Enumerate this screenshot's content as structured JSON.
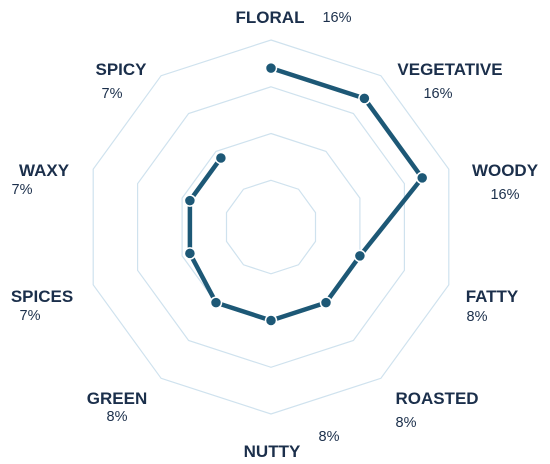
{
  "chart_data": {
    "type": "radar",
    "categories": [
      "FLORAL",
      "VEGETATIVE",
      "WOODY",
      "FATTY",
      "ROASTED",
      "NUTTY",
      "GREEN",
      "SPICES",
      "WAXY",
      "SPICY"
    ],
    "value_labels": [
      "16%",
      "16%",
      "16%",
      "8%",
      "8%",
      "8%",
      "8%",
      "7%",
      "7%",
      "7%"
    ],
    "values": [
      16,
      16,
      16,
      8,
      8,
      8,
      8,
      7,
      7,
      7
    ],
    "grid_rings": 4,
    "grid": true,
    "legend": "none"
  },
  "colors": {
    "series": "#1d5876",
    "grid": "#cfe2ee",
    "text": "#1b2f4b"
  }
}
